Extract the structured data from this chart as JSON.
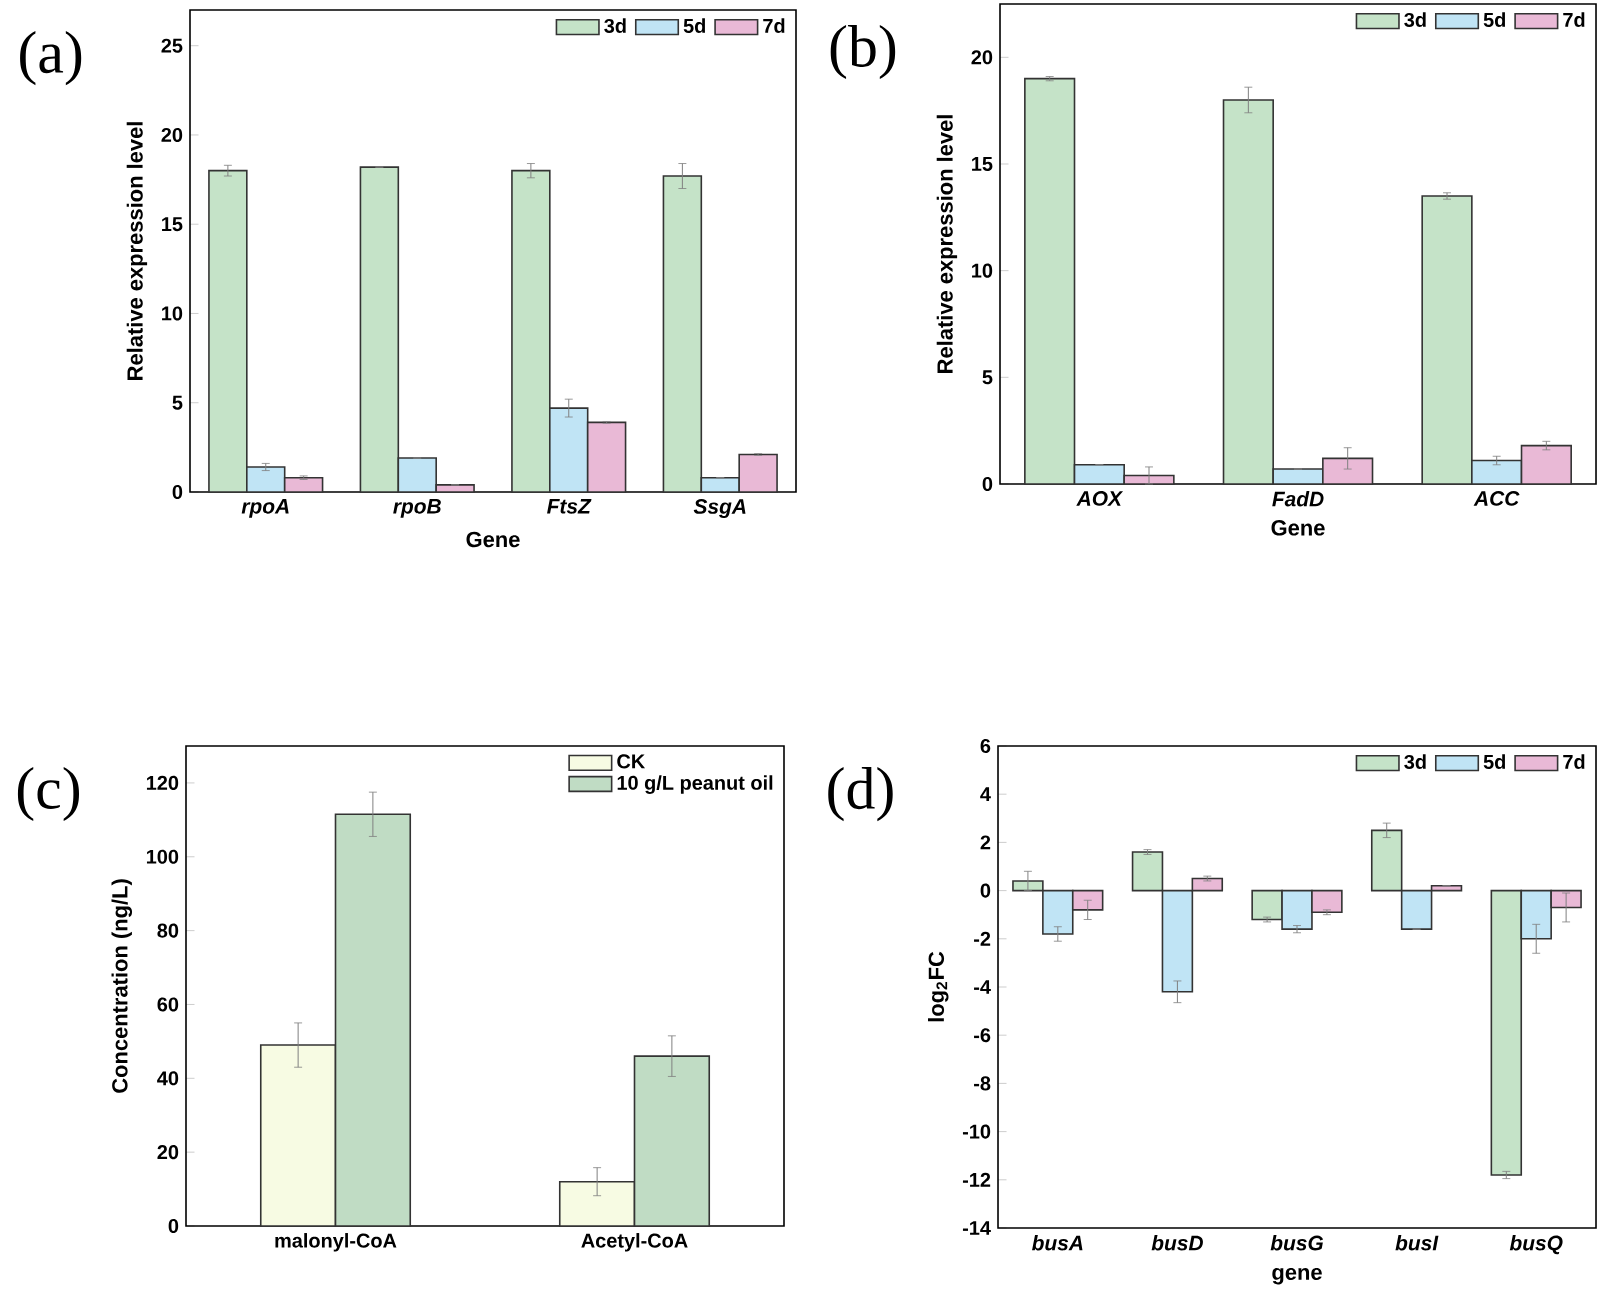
{
  "chart_data": [
    {
      "type": "bar",
      "annotations": [
        "(a)"
      ],
      "xlabel": "Gene",
      "ylabel": "Relative expression level",
      "categories": [
        "rpoA",
        "rpoB",
        "FtsZ",
        "SsgA"
      ],
      "ylim": [
        0,
        27
      ],
      "yticks": [
        0,
        5,
        10,
        15,
        20,
        25
      ],
      "legend": "top right",
      "series": [
        {
          "name": "3d",
          "color": "#c5e3c8",
          "values": [
            18.0,
            18.2,
            18.0,
            17.7
          ],
          "errors": [
            0.3,
            null,
            0.4,
            0.7
          ]
        },
        {
          "name": "5d",
          "color": "#c0e4f5",
          "values": [
            1.4,
            1.9,
            4.7,
            0.8
          ],
          "errors": [
            0.2,
            null,
            0.5,
            null
          ]
        },
        {
          "name": "7d",
          "color": "#e9b9d6",
          "values": [
            0.8,
            0.4,
            3.9,
            2.1
          ],
          "errors": [
            0.1,
            null,
            0.05,
            0.05
          ]
        }
      ]
    },
    {
      "type": "bar",
      "annotations": [
        "(b)"
      ],
      "xlabel": "Gene",
      "ylabel": "Relative expression level",
      "categories": [
        "AOX",
        "FadD",
        "ACC"
      ],
      "ylim": [
        0,
        22.5
      ],
      "yticks": [
        0,
        5,
        10,
        15,
        20
      ],
      "legend": "top right",
      "series": [
        {
          "name": "3d",
          "color": "#c5e3c8",
          "values": [
            19.0,
            18.0,
            13.5
          ],
          "errors": [
            0.1,
            0.6,
            0.15
          ]
        },
        {
          "name": "5d",
          "color": "#c0e4f5",
          "values": [
            0.9,
            0.7,
            1.1
          ],
          "errors": [
            null,
            null,
            0.2
          ]
        },
        {
          "name": "7d",
          "color": "#e9b9d6",
          "values": [
            0.4,
            1.2,
            1.8
          ],
          "errors": [
            0.4,
            0.5,
            0.2
          ]
        }
      ]
    },
    {
      "type": "bar",
      "annotations": [
        "(c)"
      ],
      "ylabel": "Concentration (ng/L)",
      "categories": [
        "malonyl-CoA",
        "Acetyl-CoA"
      ],
      "ylim": [
        0,
        130
      ],
      "yticks": [
        0,
        20,
        40,
        60,
        80,
        100,
        120
      ],
      "legend": "top right",
      "series": [
        {
          "name": "CK",
          "color": "#f7fbe3",
          "values": [
            49,
            12
          ],
          "errors": [
            6,
            3.8
          ]
        },
        {
          "name": "10 g/L peanut oil",
          "color": "#c0dcc4",
          "values": [
            111.5,
            46
          ],
          "errors": [
            6,
            5.5
          ]
        }
      ]
    },
    {
      "type": "bar",
      "annotations": [
        "(d)"
      ],
      "xlabel": "gene",
      "ylabel": "log$_{2}$FC",
      "categories": [
        "busA",
        "busD",
        "busG",
        "busI",
        "busQ"
      ],
      "ylim": [
        -14,
        6
      ],
      "yticks": [
        -14,
        -12,
        -10,
        -8,
        -6,
        -4,
        -2,
        0,
        2,
        4,
        6
      ],
      "legend": "top right",
      "series": [
        {
          "name": "3d",
          "color": "#c5e3c8",
          "values": [
            0.4,
            1.6,
            -1.2,
            2.5,
            -11.8
          ],
          "errors": [
            0.4,
            0.1,
            0.1,
            0.3,
            0.15
          ]
        },
        {
          "name": "5d",
          "color": "#c0e4f5",
          "values": [
            -1.8,
            -4.2,
            -1.6,
            -1.6,
            -2.0
          ],
          "errors": [
            0.3,
            0.45,
            0.15,
            null,
            0.6
          ]
        },
        {
          "name": "7d",
          "color": "#e9b9d6",
          "values": [
            -0.8,
            0.5,
            -0.9,
            0.2,
            -0.7
          ],
          "errors": [
            0.4,
            0.1,
            0.1,
            null,
            0.6
          ]
        }
      ]
    }
  ]
}
